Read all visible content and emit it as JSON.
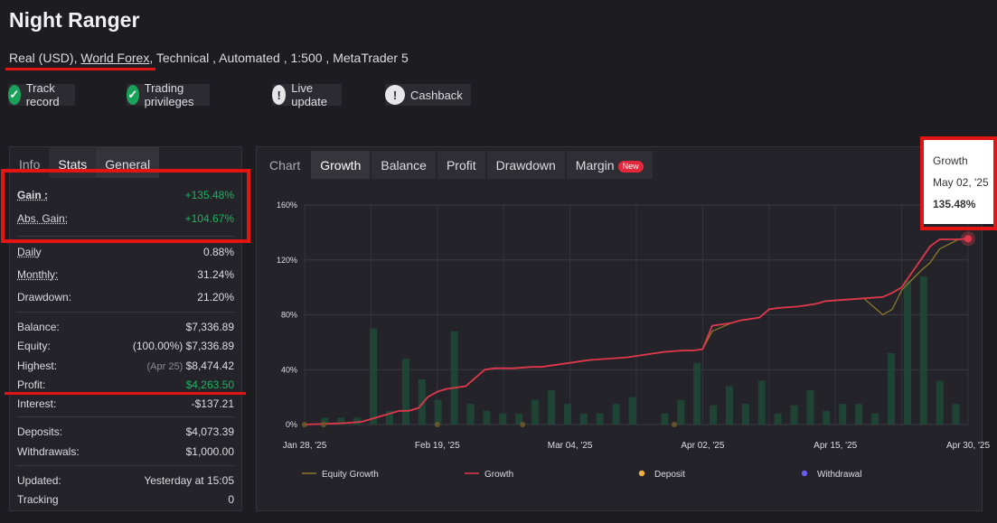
{
  "header": {
    "title": "Night Ranger",
    "account_type": "Real (USD),",
    "broker": "World Forex",
    "details": ", Technical , Automated , 1:500 , MetaTrader 5"
  },
  "badges": [
    {
      "label": "Track record",
      "icon": "check-icon"
    },
    {
      "label": "Trading privileges",
      "icon": "check-icon"
    },
    {
      "label": "Live update",
      "icon": "exclamation-icon"
    },
    {
      "label": "Cashback",
      "icon": "exclamation-icon"
    }
  ],
  "left_tabs": [
    "Info",
    "Stats",
    "General"
  ],
  "stats": {
    "gain": {
      "label": "Gain :",
      "value": "+135.48%"
    },
    "abs_gain": {
      "label": "Abs. Gain:",
      "value": "+104.67%"
    },
    "daily": {
      "label": "Daily",
      "value": "0.88%"
    },
    "monthly": {
      "label": "Monthly:",
      "value": "31.24%"
    },
    "drawdown": {
      "label": "Drawdown:",
      "value": "21.20%"
    },
    "balance": {
      "label": "Balance:",
      "value": "$7,336.89"
    },
    "equity": {
      "label": "Equity:",
      "prefix": "(100.00%)",
      "value": "$7,336.89"
    },
    "highest": {
      "label": "Highest:",
      "prefix": "(Apr 25)",
      "value": "$8,474.42"
    },
    "profit": {
      "label": "Profit:",
      "value": "$4,263.50"
    },
    "interest": {
      "label": "Interest:",
      "value": "-$137.21"
    },
    "deposits": {
      "label": "Deposits:",
      "value": "$4,073.39"
    },
    "withdrawals": {
      "label": "Withdrawals:",
      "value": "$1,000.00"
    },
    "updated": {
      "label": "Updated:",
      "value": "Yesterday at 15:05"
    },
    "tracking": {
      "label": "Tracking",
      "value": "0"
    }
  },
  "chart_tabs": [
    "Chart",
    "Growth",
    "Balance",
    "Profit",
    "Drawdown",
    "Margin"
  ],
  "new_badge": "New",
  "tooltip": {
    "series": "Growth",
    "date": "May 02, '25",
    "value": "135.48%"
  },
  "colors": {
    "growth": "#e0384a",
    "equity": "#8a7a2a",
    "deposit": "#f0b040",
    "withdrawal": "#6a5cf0",
    "bars": "#1f4a38",
    "accent_red": "#e21414",
    "positive": "#19b45d"
  },
  "chart_data": {
    "type": "line",
    "y_ticks": [
      "160%",
      "120%",
      "80%",
      "40%",
      "0%"
    ],
    "ylim": [
      0,
      160
    ],
    "x_ticks": [
      "Jan 28, '25",
      "Feb 19, '25",
      "Mar 04, '25",
      "Apr 02, '25",
      "Apr 15, '25",
      "Apr 30, '25"
    ],
    "legend": [
      "Equity Growth",
      "Growth",
      "Deposit",
      "Withdrawal"
    ],
    "growth": [
      [
        0,
        0
      ],
      [
        4,
        1
      ],
      [
        6,
        2
      ],
      [
        8,
        6
      ],
      [
        10,
        10
      ],
      [
        11,
        10
      ],
      [
        12,
        12
      ],
      [
        13,
        20
      ],
      [
        14,
        24
      ],
      [
        15,
        26
      ],
      [
        16,
        27
      ],
      [
        17,
        28
      ],
      [
        18,
        34
      ],
      [
        19,
        40
      ],
      [
        20,
        41
      ],
      [
        22,
        41
      ],
      [
        24,
        42
      ],
      [
        25,
        42
      ],
      [
        26,
        43
      ],
      [
        28,
        45
      ],
      [
        30,
        47
      ],
      [
        32,
        48
      ],
      [
        34,
        49
      ],
      [
        36,
        51
      ],
      [
        38,
        53
      ],
      [
        40,
        54
      ],
      [
        41,
        54
      ],
      [
        42,
        55
      ],
      [
        43,
        72
      ],
      [
        44,
        73
      ],
      [
        45,
        74
      ],
      [
        46,
        76
      ],
      [
        47,
        77
      ],
      [
        48,
        78
      ],
      [
        49,
        84
      ],
      [
        50,
        85
      ],
      [
        52,
        86
      ],
      [
        54,
        88
      ],
      [
        55,
        90
      ],
      [
        57,
        91
      ],
      [
        59,
        92
      ],
      [
        61,
        93
      ],
      [
        62,
        96
      ],
      [
        63,
        100
      ],
      [
        64,
        110
      ],
      [
        65,
        120
      ],
      [
        66,
        130
      ],
      [
        67,
        135
      ],
      [
        69,
        135
      ],
      [
        70,
        135.48
      ]
    ],
    "equity_growth": [
      [
        0,
        0
      ],
      [
        4,
        1
      ],
      [
        6,
        2
      ],
      [
        8,
        6
      ],
      [
        10,
        10
      ],
      [
        11,
        10
      ],
      [
        12,
        12
      ],
      [
        13,
        20
      ],
      [
        14,
        24
      ],
      [
        15,
        26
      ],
      [
        16,
        27
      ],
      [
        17,
        28
      ],
      [
        18,
        34
      ],
      [
        19,
        40
      ],
      [
        20,
        41
      ],
      [
        22,
        41
      ],
      [
        24,
        42
      ],
      [
        25,
        42
      ],
      [
        26,
        43
      ],
      [
        28,
        45
      ],
      [
        30,
        47
      ],
      [
        32,
        48
      ],
      [
        34,
        49
      ],
      [
        36,
        51
      ],
      [
        38,
        53
      ],
      [
        40,
        54
      ],
      [
        41,
        54
      ],
      [
        42,
        55
      ],
      [
        43,
        68
      ],
      [
        44,
        71
      ],
      [
        45,
        74
      ],
      [
        46,
        76
      ],
      [
        47,
        77
      ],
      [
        48,
        78
      ],
      [
        49,
        84
      ],
      [
        50,
        85
      ],
      [
        52,
        86
      ],
      [
        54,
        88
      ],
      [
        55,
        90
      ],
      [
        57,
        91
      ],
      [
        59,
        92
      ],
      [
        60,
        86
      ],
      [
        61,
        80
      ],
      [
        62,
        84
      ],
      [
        63,
        98
      ],
      [
        64,
        105
      ],
      [
        65,
        112
      ],
      [
        66,
        118
      ],
      [
        67,
        128
      ],
      [
        69,
        135
      ],
      [
        70,
        135.48
      ]
    ],
    "bar_values": [
      [
        1,
        5
      ],
      [
        2,
        5
      ],
      [
        3,
        5
      ],
      [
        4,
        70
      ],
      [
        5,
        10
      ],
      [
        6,
        48
      ],
      [
        7,
        33
      ],
      [
        8,
        18
      ],
      [
        9,
        68
      ],
      [
        10,
        15
      ],
      [
        11,
        10
      ],
      [
        12,
        8
      ],
      [
        13,
        8
      ],
      [
        14,
        18
      ],
      [
        15,
        25
      ],
      [
        16,
        15
      ],
      [
        17,
        8
      ],
      [
        18,
        8
      ],
      [
        19,
        15
      ],
      [
        20,
        20
      ],
      [
        22,
        8
      ],
      [
        23,
        18
      ],
      [
        24,
        45
      ],
      [
        25,
        14
      ],
      [
        26,
        28
      ],
      [
        27,
        15
      ],
      [
        28,
        32
      ],
      [
        29,
        8
      ],
      [
        30,
        14
      ],
      [
        31,
        25
      ],
      [
        32,
        10
      ],
      [
        33,
        15
      ],
      [
        34,
        15
      ],
      [
        35,
        8
      ],
      [
        36,
        52
      ],
      [
        37,
        105
      ],
      [
        38,
        108
      ],
      [
        39,
        32
      ],
      [
        40,
        15
      ]
    ],
    "deposits_x": [
      0,
      2,
      14,
      23,
      39
    ],
    "x_max": 70
  }
}
